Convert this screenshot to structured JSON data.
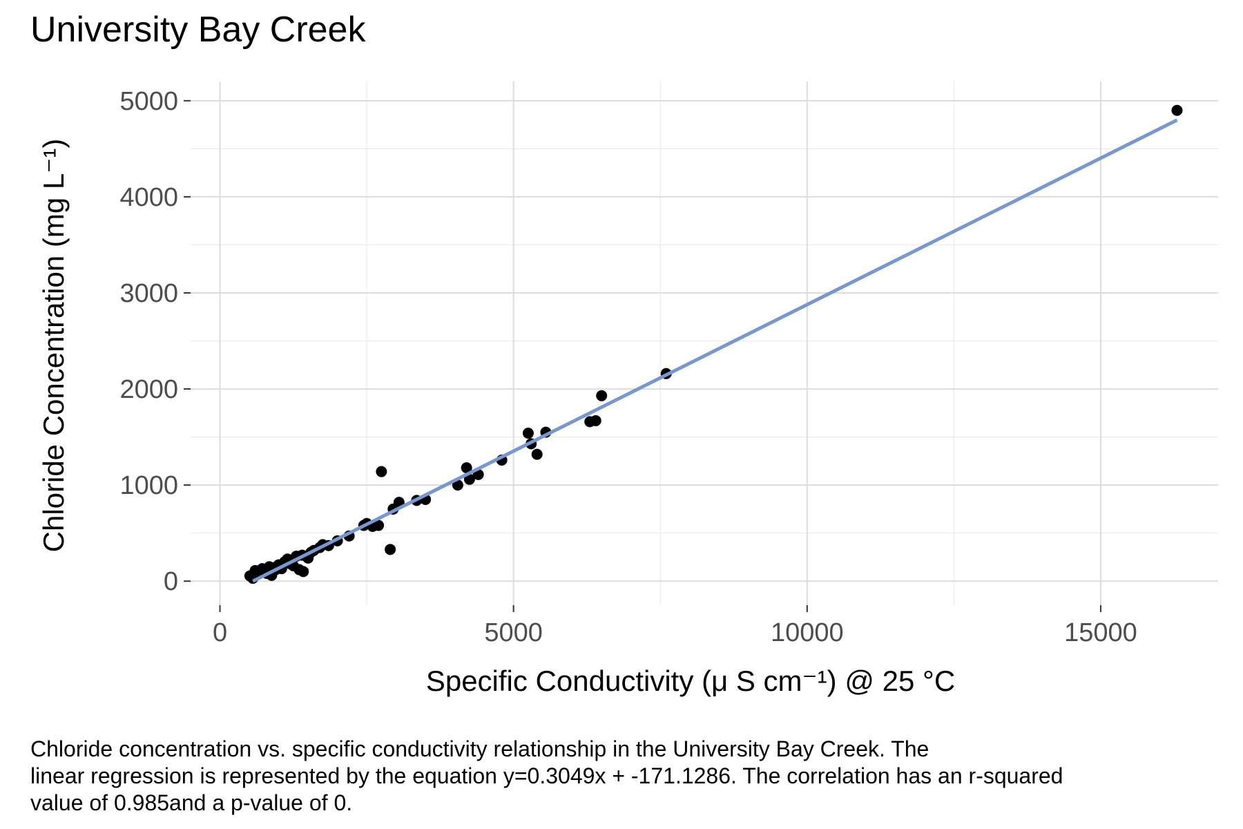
{
  "chart_data": {
    "type": "scatter",
    "title": "University Bay Creek",
    "xlabel": "Specific Conductivity (μ S cm⁻¹) @ 25 °C",
    "ylabel": "Chloride Concentration (mg L⁻¹)",
    "xlim": [
      -500,
      17000
    ],
    "ylim": [
      -250,
      5200
    ],
    "x_ticks": [
      0,
      5000,
      10000,
      15000
    ],
    "x_tick_labels": [
      "0",
      "5000",
      "10000",
      "15000"
    ],
    "y_ticks": [
      0,
      1000,
      2000,
      3000,
      4000,
      5000
    ],
    "y_tick_labels": [
      "0",
      "1000",
      "2000",
      "3000",
      "4000",
      "5000"
    ],
    "grid": true,
    "point_color": "#000000",
    "line_color": "#7797d1",
    "series": [
      {
        "type": "scatter",
        "points": [
          [
            510,
            55
          ],
          [
            560,
            30
          ],
          [
            600,
            110
          ],
          [
            640,
            70
          ],
          [
            680,
            90
          ],
          [
            720,
            130
          ],
          [
            760,
            100
          ],
          [
            800,
            80
          ],
          [
            840,
            150
          ],
          [
            880,
            60
          ],
          [
            900,
            140
          ],
          [
            950,
            120
          ],
          [
            1000,
            170
          ],
          [
            1050,
            130
          ],
          [
            1100,
            200
          ],
          [
            1150,
            230
          ],
          [
            1200,
            180
          ],
          [
            1250,
            160
          ],
          [
            1300,
            260
          ],
          [
            1350,
            120
          ],
          [
            1400,
            270
          ],
          [
            1420,
            100
          ],
          [
            1500,
            240
          ],
          [
            1550,
            300
          ],
          [
            1600,
            320
          ],
          [
            1700,
            350
          ],
          [
            1750,
            380
          ],
          [
            1850,
            370
          ],
          [
            2000,
            420
          ],
          [
            2200,
            470
          ],
          [
            2450,
            580
          ],
          [
            2500,
            600
          ],
          [
            2600,
            570
          ],
          [
            2700,
            580
          ],
          [
            2750,
            1140
          ],
          [
            2900,
            330
          ],
          [
            2950,
            750
          ],
          [
            3050,
            820
          ],
          [
            3350,
            840
          ],
          [
            3500,
            850
          ],
          [
            4050,
            1000
          ],
          [
            4200,
            1180
          ],
          [
            4250,
            1060
          ],
          [
            4400,
            1110
          ],
          [
            4800,
            1260
          ],
          [
            5250,
            1540
          ],
          [
            5300,
            1430
          ],
          [
            5400,
            1320
          ],
          [
            5550,
            1550
          ],
          [
            6300,
            1660
          ],
          [
            6400,
            1670
          ],
          [
            6500,
            1930
          ],
          [
            7600,
            2160
          ],
          [
            16300,
            4900
          ]
        ]
      },
      {
        "type": "line",
        "x": [
          561,
          16300
        ],
        "y": [
          0,
          4799
        ]
      }
    ]
  },
  "caption": {
    "line1": "Chloride concentration vs. specific conductivity relationship in the University Bay Creek. The",
    "line2": "linear regression is represented by the equation y=0.3049x + -171.1286. The correlation has an r-squared",
    "line3": "value of 0.985and a p-value of 0."
  }
}
